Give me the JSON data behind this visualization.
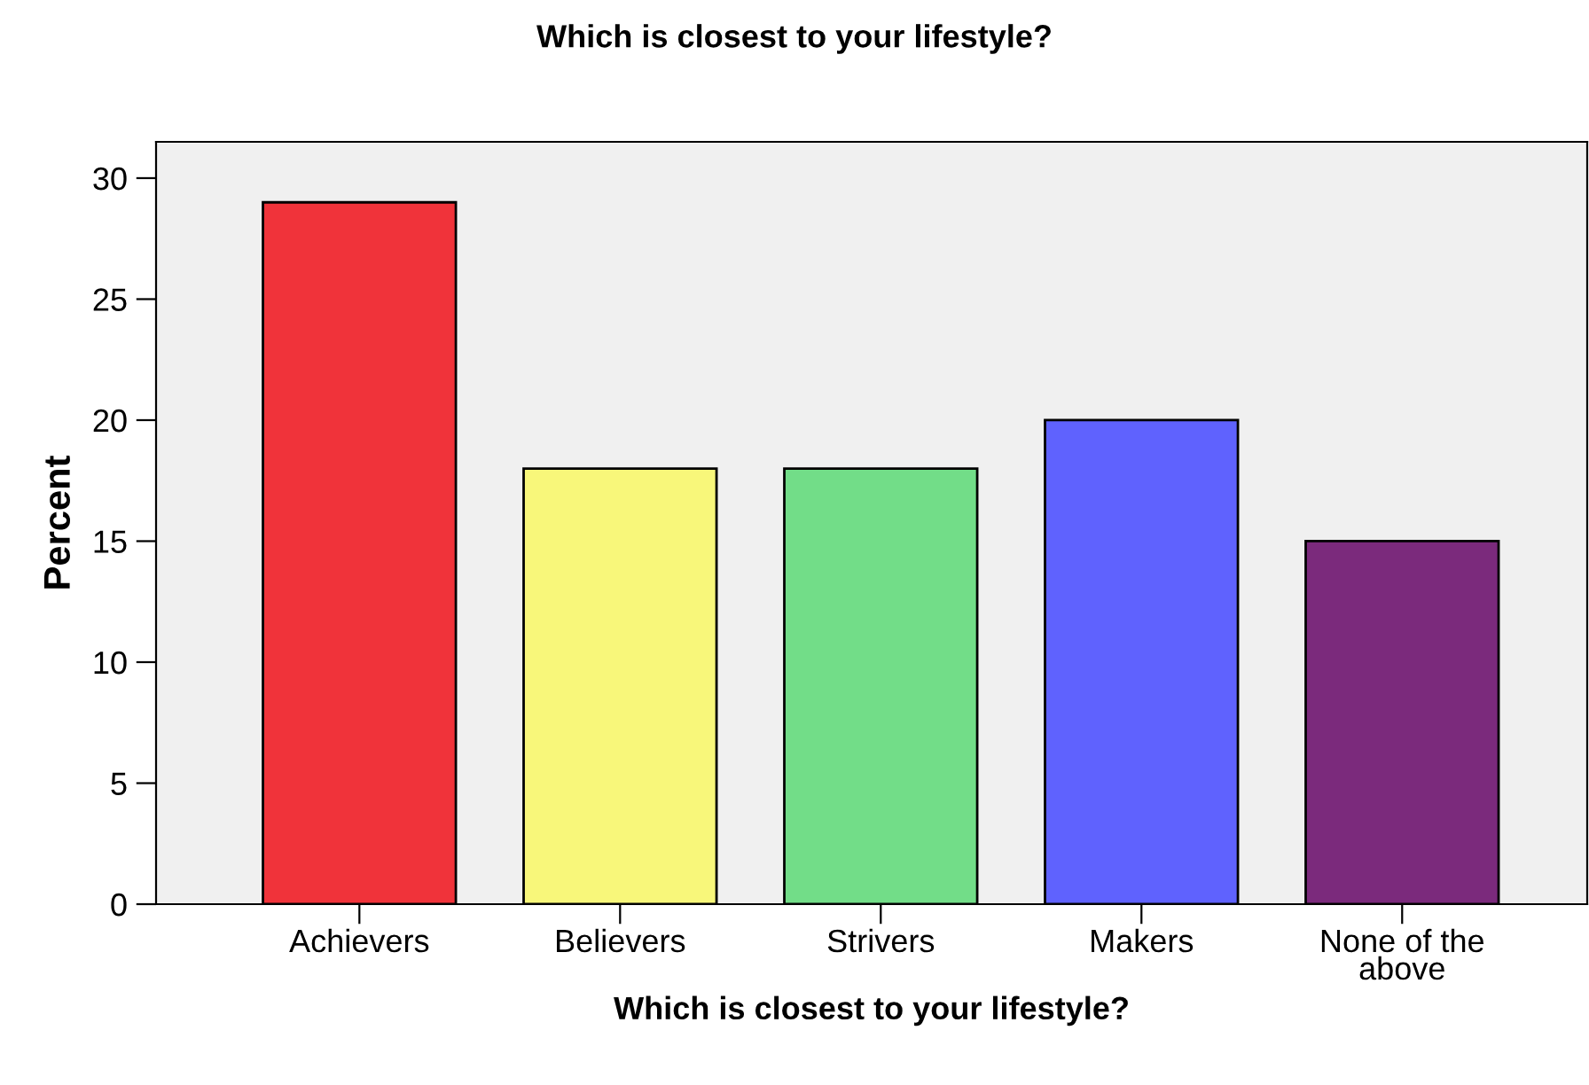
{
  "chart_data": {
    "type": "bar",
    "title": "Which is closest to your lifestyle?",
    "xlabel": "Which is closest to your lifestyle?",
    "ylabel": "Percent",
    "categories": [
      "Achievers",
      "Believers",
      "Strivers",
      "Makers",
      "None of the above"
    ],
    "values": [
      29,
      18,
      18,
      20,
      15
    ],
    "colors": [
      "#f0333a",
      "#f8f77a",
      "#72dd88",
      "#5f62fe",
      "#7b2a7c"
    ],
    "ylim": [
      0,
      31.5
    ],
    "yticks": [
      0,
      5,
      10,
      15,
      20,
      25,
      30
    ],
    "grid": false,
    "legend": false
  }
}
